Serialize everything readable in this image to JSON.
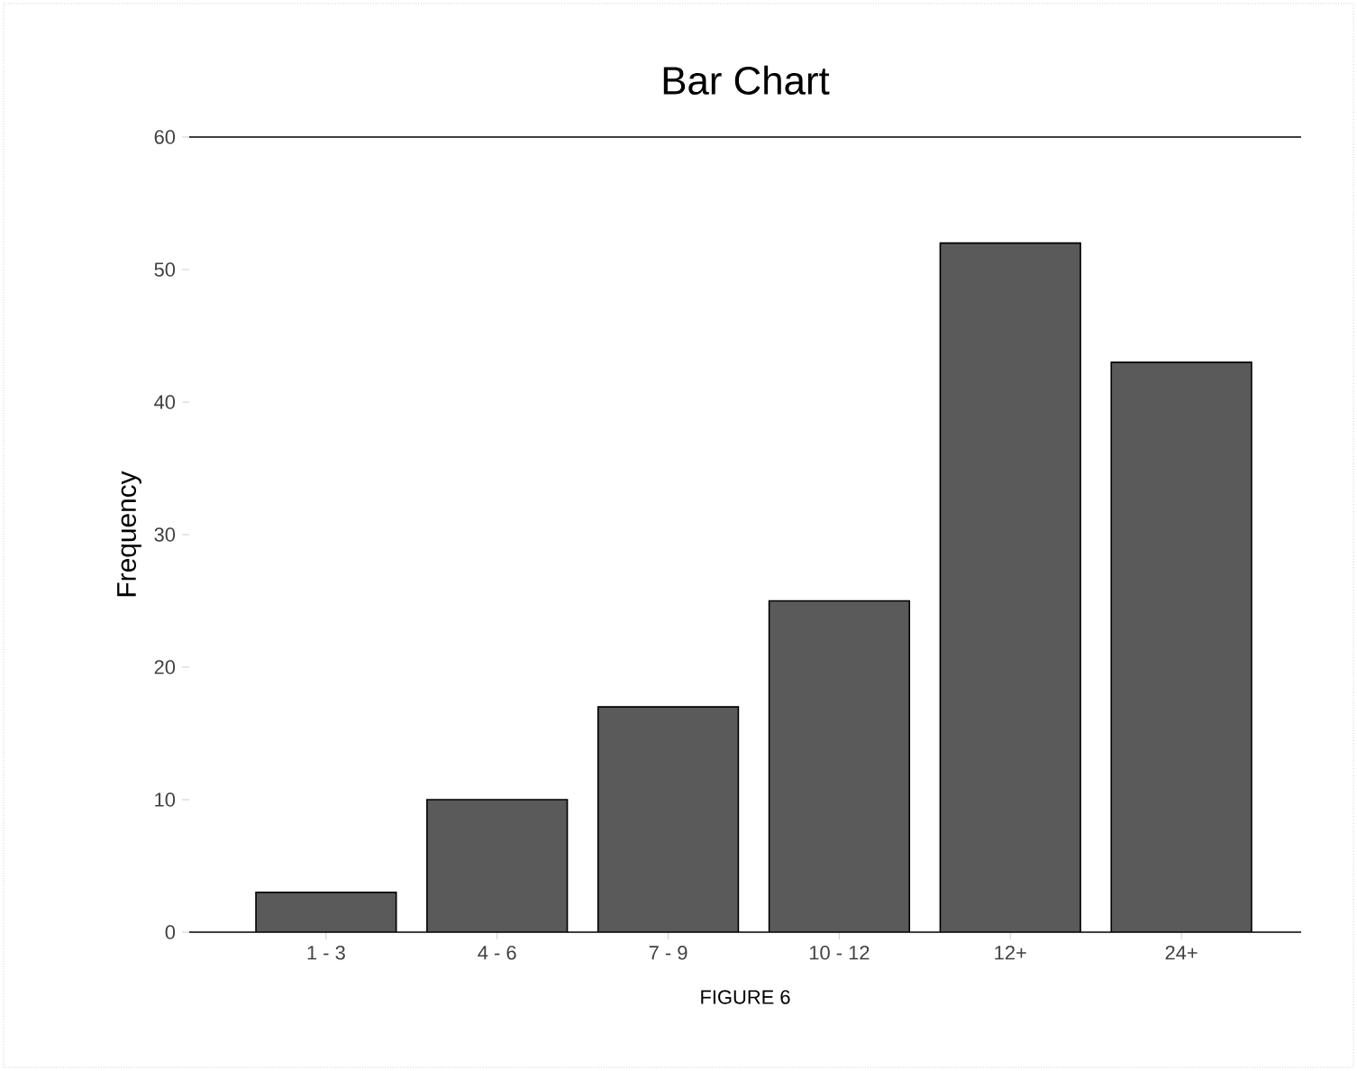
{
  "chart_data": {
    "type": "bar",
    "title": "Bar Chart",
    "xlabel": "FIGURE 6",
    "ylabel": "Frequency",
    "categories": [
      "1 - 3",
      "4 - 6",
      "7 - 9",
      "10 - 12",
      "12+",
      "24+"
    ],
    "values": [
      3,
      10,
      17,
      25,
      52,
      43
    ],
    "color": "#5a5a5a",
    "ylim": [
      0,
      60
    ],
    "yticks": [
      0,
      10,
      20,
      30,
      40,
      50,
      60
    ]
  }
}
